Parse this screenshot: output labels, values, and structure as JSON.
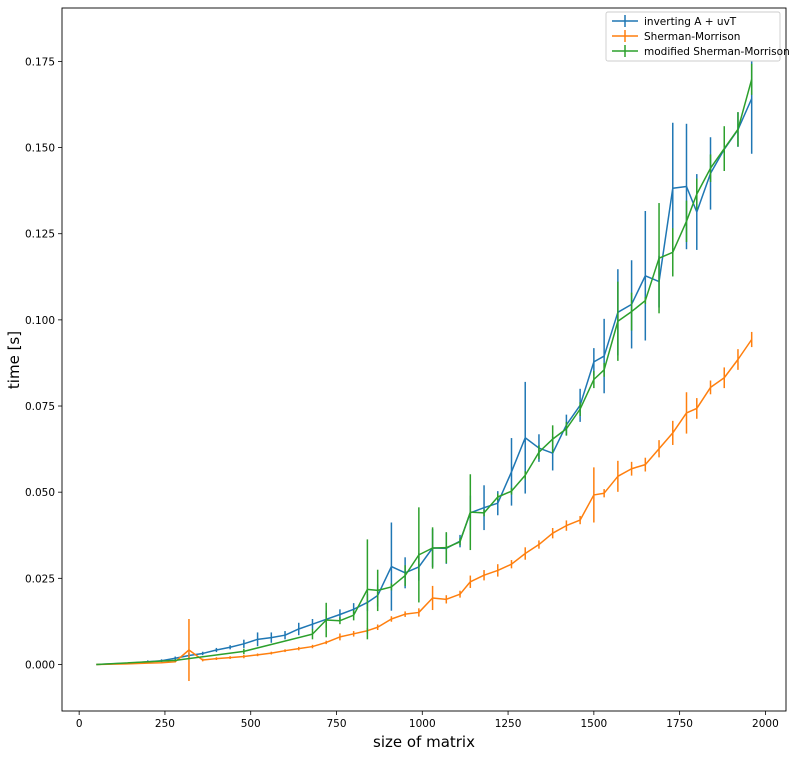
{
  "chart_data": {
    "type": "line",
    "title": "",
    "xlabel": "size of matrix",
    "ylabel": "time [s]",
    "xlim": [
      -50,
      2060
    ],
    "ylim": [
      -0.0135,
      0.1905
    ],
    "xticks": [
      0,
      250,
      500,
      750,
      1000,
      1250,
      1500,
      1750,
      2000
    ],
    "xtick_labels": [
      "0",
      "250",
      "500",
      "750",
      "1000",
      "1250",
      "1500",
      "1750",
      "2000"
    ],
    "yticks": [
      0.0,
      0.025,
      0.05,
      0.075,
      0.1,
      0.125,
      0.15,
      0.175
    ],
    "ytick_labels": [
      "0.000",
      "0.025",
      "0.050",
      "0.075",
      "0.100",
      "0.125",
      "0.150",
      "0.175"
    ],
    "grid": false,
    "legend_position": "top-right",
    "series": [
      {
        "name": "inverting A + uvT",
        "color": "#1f77b4",
        "x": [
          50,
          100,
          150,
          200,
          240,
          280,
          320,
          360,
          400,
          440,
          480,
          520,
          560,
          600,
          640,
          680,
          720,
          760,
          800,
          840,
          870,
          910,
          950,
          990,
          1030,
          1070,
          1110,
          1140,
          1180,
          1220,
          1260,
          1300,
          1340,
          1380,
          1420,
          1460,
          1500,
          1530,
          1570,
          1610,
          1650,
          1690,
          1730,
          1770,
          1800,
          1840,
          1880,
          1920,
          1960
        ],
        "y": [
          0.0,
          0.0002,
          0.0004,
          0.0008,
          0.0011,
          0.0018,
          0.0026,
          0.0032,
          0.0042,
          0.005,
          0.006,
          0.0073,
          0.0078,
          0.0085,
          0.0103,
          0.0117,
          0.0131,
          0.0145,
          0.016,
          0.018,
          0.02,
          0.0284,
          0.0266,
          0.0283,
          0.0338,
          0.0337,
          0.0358,
          0.044,
          0.0455,
          0.0468,
          0.0559,
          0.0658,
          0.0628,
          0.0613,
          0.0695,
          0.0752,
          0.0878,
          0.0895,
          0.1022,
          0.1045,
          0.1128,
          0.1111,
          0.1382,
          0.1387,
          0.1313,
          0.1425,
          0.1495,
          0.1552,
          0.1642
        ],
        "err": [
          0.0,
          0.0001,
          0.0002,
          0.0004,
          0.0004,
          0.0005,
          0.0008,
          0.0005,
          0.0006,
          0.0006,
          0.0012,
          0.002,
          0.0015,
          0.0012,
          0.0018,
          0.0015,
          0.0025,
          0.0015,
          0.0018,
          0.0025,
          0.0032,
          0.0128,
          0.0045,
          0.004,
          0.0055,
          0.0045,
          0.0018,
          0.005,
          0.0065,
          0.0035,
          0.0098,
          0.0162,
          0.004,
          0.005,
          0.003,
          0.0048,
          0.004,
          0.0108,
          0.0125,
          0.0128,
          0.0188,
          0.0075,
          0.019,
          0.0182,
          0.011,
          0.0105,
          0.0045,
          0.005,
          0.016
        ]
      },
      {
        "name": "Sherman-Morrison",
        "color": "#ff7f0e",
        "x": [
          50,
          100,
          150,
          200,
          240,
          280,
          320,
          360,
          400,
          440,
          480,
          520,
          560,
          600,
          640,
          680,
          720,
          760,
          800,
          840,
          870,
          910,
          950,
          990,
          1030,
          1070,
          1110,
          1140,
          1180,
          1220,
          1260,
          1300,
          1340,
          1380,
          1420,
          1460,
          1500,
          1530,
          1570,
          1610,
          1650,
          1690,
          1730,
          1770,
          1800,
          1840,
          1880,
          1920,
          1960
        ],
        "y": [
          0.0,
          0.0001,
          0.0002,
          0.0004,
          0.0005,
          0.0008,
          0.0042,
          0.0013,
          0.0017,
          0.002,
          0.0023,
          0.0028,
          0.0033,
          0.004,
          0.0046,
          0.0052,
          0.0064,
          0.008,
          0.0089,
          0.0098,
          0.0108,
          0.0132,
          0.0146,
          0.0151,
          0.0193,
          0.0189,
          0.0204,
          0.024,
          0.0259,
          0.0273,
          0.0291,
          0.0322,
          0.0348,
          0.0381,
          0.0403,
          0.0419,
          0.0492,
          0.0497,
          0.0546,
          0.0568,
          0.058,
          0.0626,
          0.0672,
          0.073,
          0.0743,
          0.0804,
          0.0832,
          0.0885,
          0.0943
        ],
        "err": [
          0.0,
          0.0,
          0.0001,
          0.0001,
          0.0001,
          0.0002,
          0.009,
          0.0004,
          0.0004,
          0.0004,
          0.0005,
          0.0004,
          0.0004,
          0.0004,
          0.0005,
          0.0005,
          0.0005,
          0.001,
          0.0008,
          0.0008,
          0.0008,
          0.0008,
          0.0008,
          0.0012,
          0.0035,
          0.0012,
          0.001,
          0.0018,
          0.0015,
          0.0018,
          0.0012,
          0.0018,
          0.0012,
          0.0015,
          0.0015,
          0.0012,
          0.008,
          0.0012,
          0.0045,
          0.002,
          0.002,
          0.0025,
          0.0035,
          0.006,
          0.003,
          0.002,
          0.003,
          0.003,
          0.0022
        ]
      },
      {
        "name": "modified Sherman-Morrison",
        "color": "#2ca02c",
        "x": [
          50,
          280,
          480,
          680,
          720,
          760,
          800,
          840,
          870,
          910,
          950,
          990,
          1030,
          1070,
          1110,
          1140,
          1180,
          1220,
          1260,
          1300,
          1340,
          1380,
          1420,
          1460,
          1500,
          1530,
          1570,
          1610,
          1650,
          1690,
          1730,
          1770,
          1800,
          1840,
          1880,
          1920,
          1960
        ],
        "y": [
          0.0,
          0.0012,
          0.0038,
          0.0088,
          0.0129,
          0.0127,
          0.0143,
          0.0218,
          0.0215,
          0.0225,
          0.0258,
          0.0318,
          0.0338,
          0.0339,
          0.0356,
          0.0442,
          0.044,
          0.0486,
          0.0503,
          0.0549,
          0.0616,
          0.0654,
          0.0684,
          0.0741,
          0.0827,
          0.0855,
          0.0996,
          0.1024,
          0.1056,
          0.1179,
          0.1196,
          0.1286,
          0.1365,
          0.144,
          0.1497,
          0.1553,
          0.1698
        ],
        "err": [
          0.0,
          0.0003,
          0.0008,
          0.0015,
          0.005,
          0.001,
          0.0015,
          0.0145,
          0.006,
          0.001,
          0.003,
          0.0138,
          0.006,
          0.0045,
          0.001,
          0.011,
          0.001,
          0.001,
          0.001,
          0.0012,
          0.002,
          0.004,
          0.002,
          0.002,
          0.0025,
          0.002,
          0.0115,
          0.0055,
          0.001,
          0.016,
          0.007,
          0.006,
          0.0045,
          0.004,
          0.0065,
          0.005,
          0.0045
        ]
      }
    ]
  }
}
